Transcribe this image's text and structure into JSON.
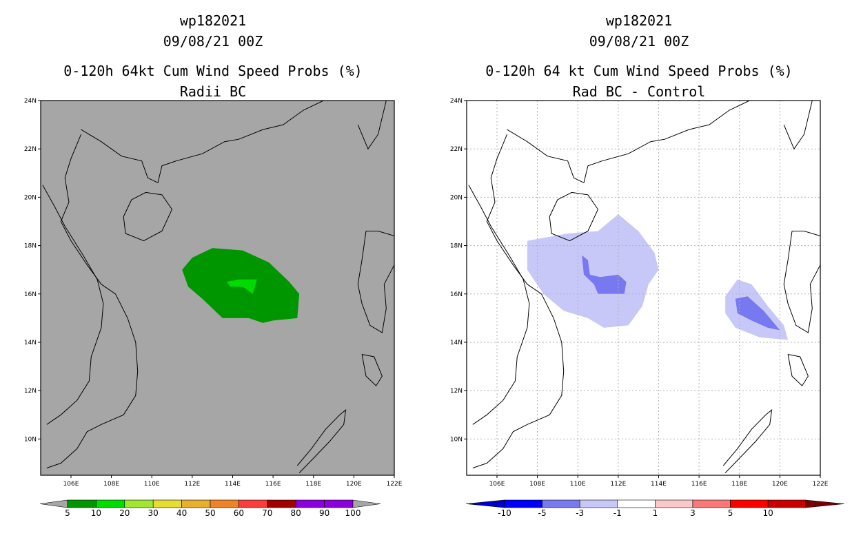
{
  "panels": [
    {
      "id": "left",
      "title_line1": "wp182021",
      "title_line2": "09/08/21 00Z",
      "title_line3": "0-120h 64kt Cum Wind Speed Probs (%)",
      "title_line4": "Radii BC",
      "background": "#a6a6a6",
      "grid": false
    },
    {
      "id": "right",
      "title_line1": "wp182021",
      "title_line2": "09/08/21 00Z",
      "title_line3": "0-120h 64 kt Cum Wind Speed Probs (%)",
      "title_line4": "Rad BC - Control",
      "background": "#ffffff",
      "grid": true
    }
  ],
  "colors": {
    "prob_5": "#009600",
    "prob_10": "#00dc00",
    "prob_20": "#a0e632",
    "prob_30": "#e6dc32",
    "prob_40": "#e6af2d",
    "prob_50": "#f08228",
    "prob_60": "#fa3c3c",
    "prob_70": "#a00000",
    "prob_80": "#a00000",
    "prob_90": "#8c00dc",
    "prob_100": "#8c00dc",
    "diff_minus3": "#c8c8f8",
    "diff_minus5": "#7878f0"
  },
  "chart_data": [
    {
      "type": "heatmap",
      "panel": "left",
      "title": "0-120h 64kt Cum Wind Speed Probs (%)",
      "subtitle": "Radii BC",
      "xlim": [
        104.5,
        122
      ],
      "ylim": [
        8.5,
        24
      ],
      "x_ticks": [
        "106E",
        "108E",
        "110E",
        "112E",
        "114E",
        "116E",
        "118E",
        "120E",
        "122E"
      ],
      "y_ticks": [
        "24N",
        "22N",
        "20N",
        "18N",
        "16N",
        "14N",
        "12N",
        "10N"
      ],
      "colorbar": {
        "labels": [
          "5",
          "10",
          "20",
          "30",
          "40",
          "50",
          "60",
          "70",
          "80",
          "90",
          "100"
        ],
        "colors": [
          "#009600",
          "#00dc00",
          "#a0e632",
          "#e6dc32",
          "#e6af2d",
          "#f08228",
          "#fa3c3c",
          "#a00000",
          "#8c00dc"
        ]
      },
      "contours": [
        {
          "level": "5-10%",
          "color": "#009600",
          "lonlat": [
            [
              111.5,
              17.0
            ],
            [
              112.0,
              17.5
            ],
            [
              113.0,
              17.9
            ],
            [
              114.5,
              17.8
            ],
            [
              115.8,
              17.3
            ],
            [
              116.8,
              16.5
            ],
            [
              117.3,
              16.0
            ],
            [
              117.2,
              15.0
            ],
            [
              116.0,
              14.9
            ],
            [
              115.5,
              14.8
            ],
            [
              114.8,
              15.0
            ],
            [
              113.5,
              15.0
            ],
            [
              112.5,
              15.8
            ],
            [
              111.8,
              16.3
            ],
            [
              111.5,
              17.0
            ]
          ]
        },
        {
          "level": "10-20%",
          "color": "#00dc00",
          "lonlat": [
            [
              113.7,
              16.5
            ],
            [
              114.3,
              16.6
            ],
            [
              115.2,
              16.6
            ],
            [
              115.0,
              16.0
            ],
            [
              114.5,
              16.3
            ],
            [
              113.9,
              16.3
            ],
            [
              113.7,
              16.5
            ]
          ]
        }
      ]
    },
    {
      "type": "heatmap",
      "panel": "right",
      "title": "0-120h 64 kt Cum Wind Speed Probs (%)",
      "subtitle": "Rad BC - Control",
      "xlim": [
        104.5,
        122
      ],
      "ylim": [
        8.5,
        24
      ],
      "x_ticks": [
        "106E",
        "108E",
        "110E",
        "112E",
        "114E",
        "116E",
        "118E",
        "120E",
        "122E"
      ],
      "y_ticks": [
        "24N",
        "22N",
        "20N",
        "18N",
        "16N",
        "14N",
        "12N",
        "10N"
      ],
      "colorbar": {
        "labels": [
          "-10",
          "-5",
          "-3",
          "-1",
          "1",
          "3",
          "5",
          "10"
        ],
        "colors": [
          "#0000c8",
          "#0000fa",
          "#7878f0",
          "#c8c8f8",
          "#ffffff",
          "#fac8c8",
          "#fa7878",
          "#fa0000",
          "#c80000",
          "#780000"
        ]
      },
      "contours": [
        {
          "level": "-3 to -1",
          "color": "#c8c8f8",
          "lonlat": [
            [
              107.5,
              18.2
            ],
            [
              109.5,
              18.5
            ],
            [
              111.0,
              18.6
            ],
            [
              112.0,
              19.3
            ],
            [
              113.0,
              18.6
            ],
            [
              113.8,
              17.7
            ],
            [
              114.0,
              17.0
            ],
            [
              113.5,
              16.4
            ],
            [
              113.2,
              15.5
            ],
            [
              112.5,
              14.7
            ],
            [
              111.3,
              14.6
            ],
            [
              110.5,
              15.0
            ],
            [
              109.3,
              15.3
            ],
            [
              108.3,
              16.0
            ],
            [
              107.5,
              17.0
            ],
            [
              107.5,
              18.2
            ]
          ]
        },
        {
          "level": "-3 to -1",
          "color": "#c8c8f8",
          "lonlat": [
            [
              117.3,
              15.9
            ],
            [
              117.9,
              16.6
            ],
            [
              118.6,
              16.4
            ],
            [
              119.4,
              15.5
            ],
            [
              120.2,
              14.7
            ],
            [
              120.4,
              14.1
            ],
            [
              119.0,
              14.2
            ],
            [
              117.8,
              14.6
            ],
            [
              117.3,
              15.2
            ],
            [
              117.3,
              15.9
            ]
          ]
        },
        {
          "level": "-5 to -3",
          "color": "#7878f0",
          "lonlat": [
            [
              110.2,
              17.6
            ],
            [
              110.5,
              17.4
            ],
            [
              110.6,
              16.8
            ],
            [
              111.1,
              16.7
            ],
            [
              112.0,
              16.8
            ],
            [
              112.4,
              16.5
            ],
            [
              112.3,
              16.0
            ],
            [
              111.0,
              16.0
            ],
            [
              110.8,
              16.4
            ],
            [
              110.3,
              16.8
            ],
            [
              110.2,
              17.6
            ]
          ]
        },
        {
          "level": "-5 to -3",
          "color": "#7878f0",
          "lonlat": [
            [
              117.8,
              15.8
            ],
            [
              118.4,
              15.9
            ],
            [
              119.2,
              15.3
            ],
            [
              120.0,
              14.5
            ],
            [
              119.4,
              14.6
            ],
            [
              118.6,
              14.9
            ],
            [
              117.9,
              15.2
            ],
            [
              117.8,
              15.8
            ]
          ]
        }
      ]
    }
  ]
}
